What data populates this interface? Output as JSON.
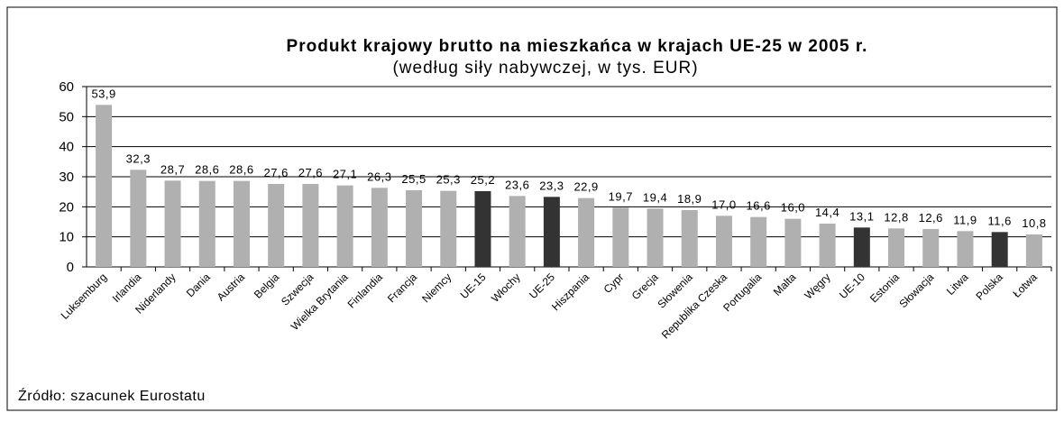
{
  "chart_data": {
    "type": "bar",
    "title": "Produkt krajowy brutto na mieszkańca w krajach UE-25 w 2005 r.",
    "subtitle": "(według siły nabywczej, w tys. EUR)",
    "source": "Źródło: szacunek Eurostatu",
    "categories": [
      "Luksemburg",
      "Irlandia",
      "Niderlandy",
      "Dania",
      "Austria",
      "Belgia",
      "Szwecja",
      "Wielka Brytania",
      "Finlandia",
      "Francja",
      "Niemcy",
      "UE-15",
      "Włochy",
      "UE-25",
      "Hiszpania",
      "Cypr",
      "Grecja",
      "Słowenia",
      "Republika Czeska",
      "Portugalia",
      "Malta",
      "Węgry",
      "UE-10",
      "Estonia",
      "Słowacja",
      "Litwa",
      "Polska",
      "Łotwa"
    ],
    "values": [
      53.9,
      32.3,
      28.7,
      28.6,
      28.6,
      27.6,
      27.6,
      27.1,
      26.3,
      25.5,
      25.3,
      25.2,
      23.6,
      23.3,
      22.9,
      19.7,
      19.4,
      18.9,
      17,
      16.6,
      16,
      14.4,
      13.1,
      12.8,
      12.6,
      11.9,
      11.6,
      10.8
    ],
    "value_labels": [
      "53,9",
      "32,3",
      "28,7",
      "28,6",
      "28,6",
      "27,6",
      "27,6",
      "27,1",
      "26,3",
      "25,5",
      "25,3",
      "25,2",
      "23,6",
      "23,3",
      "22,9",
      "19,7",
      "19,4",
      "18,9",
      "17,0",
      "16,6",
      "16,0",
      "14,4",
      "13,1",
      "12,8",
      "12,6",
      "11,9",
      "11,6",
      "10,8"
    ],
    "colors": [
      "#b0b0b0",
      "#b0b0b0",
      "#b0b0b0",
      "#b0b0b0",
      "#b0b0b0",
      "#b0b0b0",
      "#b0b0b0",
      "#b0b0b0",
      "#b0b0b0",
      "#b0b0b0",
      "#b0b0b0",
      "#333333",
      "#b0b0b0",
      "#333333",
      "#b0b0b0",
      "#b0b0b0",
      "#b0b0b0",
      "#b0b0b0",
      "#b0b0b0",
      "#b0b0b0",
      "#b0b0b0",
      "#b0b0b0",
      "#333333",
      "#b0b0b0",
      "#b0b0b0",
      "#b0b0b0",
      "#333333",
      "#b0b0b0"
    ],
    "ylim": [
      0,
      60
    ],
    "yticks": [
      0,
      10,
      20,
      30,
      40,
      50,
      60
    ],
    "grid": true
  }
}
